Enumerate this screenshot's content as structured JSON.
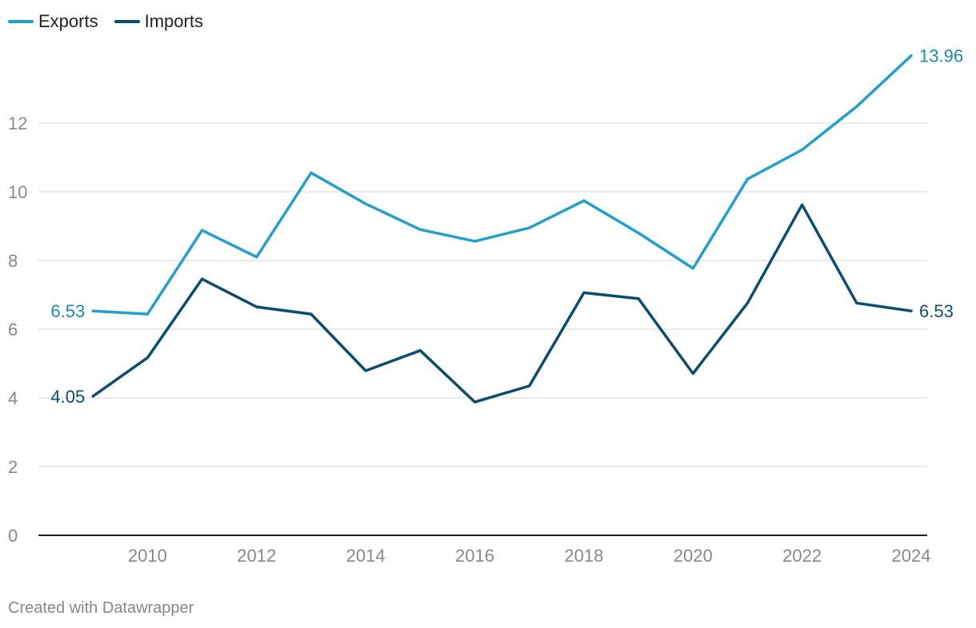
{
  "legend": {
    "items": [
      {
        "label": "Exports",
        "color": "#22a0cd"
      },
      {
        "label": "Imports",
        "color": "#0b4d72"
      }
    ]
  },
  "footer": {
    "credit": "Created with Datawrapper"
  },
  "chart_data": {
    "type": "line",
    "title": "",
    "xlabel": "",
    "ylabel": "",
    "x": [
      2009,
      2010,
      2011,
      2012,
      2013,
      2014,
      2015,
      2016,
      2017,
      2018,
      2019,
      2020,
      2021,
      2022,
      2023,
      2024
    ],
    "xlim": [
      2008,
      2024
    ],
    "ylim": [
      0,
      14
    ],
    "grid": true,
    "legend_position": "top-left",
    "x_ticks": [
      2010,
      2012,
      2014,
      2016,
      2018,
      2020,
      2022,
      2024
    ],
    "y_ticks": [
      0,
      2,
      4,
      6,
      8,
      10,
      12
    ],
    "series": [
      {
        "name": "Exports",
        "color": "#22a0cd",
        "label_color": "#1a8ab3",
        "values": [
          6.53,
          6.44,
          8.88,
          8.1,
          10.55,
          9.65,
          8.9,
          8.56,
          8.95,
          9.74,
          8.8,
          7.77,
          10.37,
          11.22,
          12.48,
          13.96
        ],
        "start_label": "6.53",
        "end_label": "13.96"
      },
      {
        "name": "Imports",
        "color": "#0b4d72",
        "label_color": "#0b4d72",
        "values": [
          4.05,
          5.17,
          7.46,
          6.65,
          6.44,
          4.79,
          5.38,
          3.88,
          4.35,
          7.06,
          6.89,
          4.71,
          6.76,
          9.62,
          6.76,
          6.53
        ],
        "start_label": "4.05",
        "end_label": "6.53"
      }
    ]
  }
}
